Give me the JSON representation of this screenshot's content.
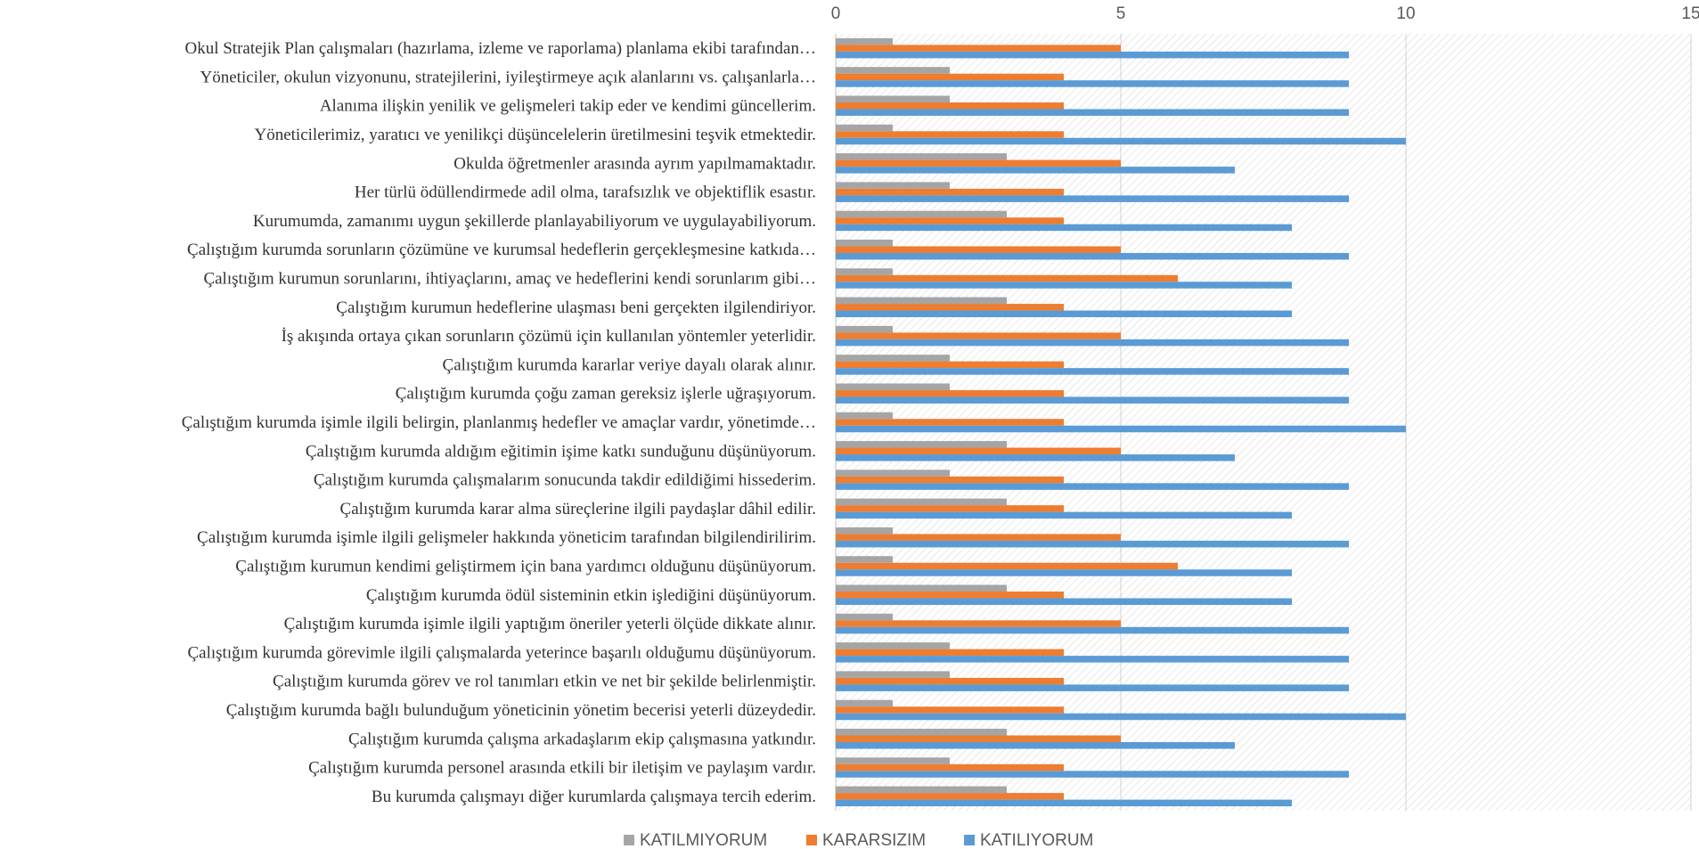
{
  "chart_data": {
    "type": "bar",
    "orientation": "horizontal",
    "xlim": [
      0,
      15
    ],
    "xticks": [
      0,
      5,
      10,
      15
    ],
    "legend_position": "bottom",
    "grid": true,
    "categories": [
      "Okul Stratejik Plan çalışmaları (hazırlama, izleme ve raporlama) planlama ekibi tarafından…",
      "Yöneticiler, okulun vizyonunu, stratejilerini, iyileştirmeye açık alanlarını vs. çalışanlarla…",
      "Alanıma ilişkin yenilik ve gelişmeleri takip eder ve kendimi güncellerim.",
      "Yöneticilerimiz, yaratıcı ve yenilikçi düşüncelelerin üretilmesini teşvik etmektedir.",
      "Okulda öğretmenler arasında ayrım yapılmamaktadır.",
      "Her türlü ödüllendirmede adil olma, tarafsızlık ve objektiflik esastır.",
      "Kurumumda, zamanımı uygun şekillerde planlayabiliyorum ve uygulayabiliyorum.",
      "Çalıştığım kurumda sorunların çözümüne ve kurumsal hedeflerin gerçekleşmesine katkıda…",
      "Çalıştığım kurumun sorunlarını, ihtiyaçlarını, amaç ve hedeflerini kendi sorunlarım gibi…",
      "Çalıştığım kurumun hedeflerine ulaşması beni gerçekten ilgilendiriyor.",
      "İş akışında ortaya çıkan sorunların çözümü için kullanılan yöntemler yeterlidir.",
      "Çalıştığım kurumda kararlar veriye dayalı olarak alınır.",
      "Çalıştığım kurumda çoğu zaman gereksiz işlerle uğraşıyorum.",
      "Çalıştığım kurumda işimle ilgili belirgin, planlanmış hedefler ve amaçlar vardır, yönetimde…",
      "Çalıştığım kurumda aldığım eğitimin işime katkı sunduğunu düşünüyorum.",
      "Çalıştığım kurumda çalışmalarım sonucunda takdir edildiğimi hissederim.",
      "Çalıştığım kurumda karar alma süreçlerine ilgili paydaşlar dâhil edilir.",
      "Çalıştığım kurumda işimle ilgili gelişmeler hakkında yöneticim tarafından bilgilendirilirim.",
      "Çalıştığım kurumun kendimi geliştirmem için bana yardımcı olduğunu düşünüyorum.",
      "Çalıştığım kurumda ödül sisteminin etkin işlediğini düşünüyorum.",
      "Çalıştığım kurumda işimle ilgili yaptığım öneriler yeterli ölçüde dikkate alınır.",
      "Çalıştığım kurumda görevimle ilgili çalışmalarda yeterince başarılı olduğumu düşünüyorum.",
      "Çalıştığım kurumda görev ve rol tanımları etkin ve net bir şekilde belirlenmiştir.",
      "Çalıştığım kurumda bağlı bulunduğum yöneticinin yönetim becerisi yeterli düzeydedir.",
      "Çalıştığım kurumda çalışma arkadaşlarım ekip çalışmasına yatkındır.",
      "Çalıştığım kurumda personel arasında etkili bir iletişim ve paylaşım vardır.",
      "Bu kurumda çalışmayı diğer kurumlarda çalışmaya tercih ederim."
    ],
    "series": [
      {
        "name": "KATILMIYORUM",
        "color": "#a5a5a5",
        "values": [
          1,
          2,
          2,
          1,
          3,
          2,
          3,
          1,
          1,
          3,
          1,
          2,
          2,
          1,
          3,
          2,
          3,
          1,
          1,
          3,
          1,
          2,
          2,
          1,
          3,
          2,
          3
        ]
      },
      {
        "name": "KARARSIZIM",
        "color": "#ed7d31",
        "values": [
          5,
          4,
          4,
          4,
          5,
          4,
          4,
          5,
          6,
          4,
          5,
          4,
          4,
          4,
          5,
          4,
          4,
          5,
          6,
          4,
          5,
          4,
          4,
          4,
          5,
          4,
          4
        ]
      },
      {
        "name": "KATILIYORUM",
        "color": "#5b9bd5",
        "values": [
          9,
          9,
          9,
          10,
          7,
          9,
          8,
          9,
          8,
          8,
          9,
          9,
          9,
          10,
          7,
          9,
          8,
          9,
          8,
          8,
          9,
          9,
          9,
          10,
          7,
          9,
          8
        ]
      }
    ]
  }
}
